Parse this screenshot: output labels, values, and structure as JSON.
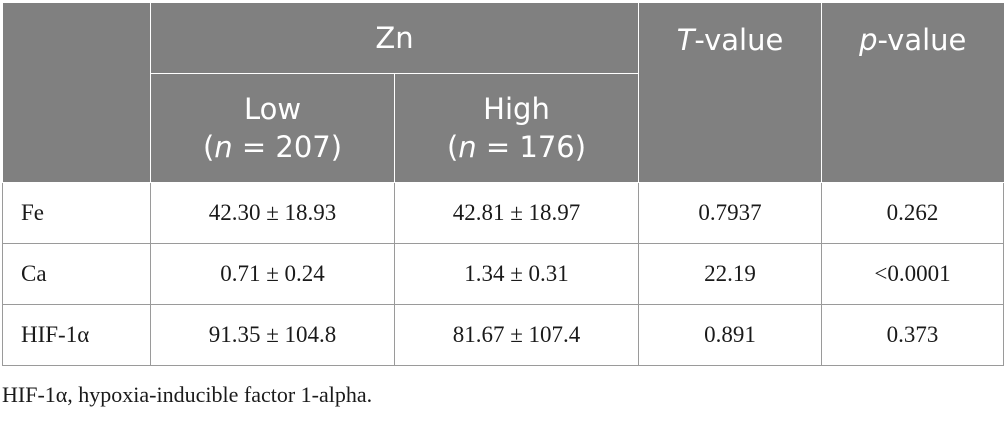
{
  "header": {
    "group": "Zn",
    "tvalue_italic": "T",
    "tvalue_rest": "-value",
    "pvalue_italic": "p",
    "pvalue_rest": "-value",
    "low": {
      "label": "Low",
      "n_open": "(",
      "n_var": "n",
      "n_rest": " = 207)"
    },
    "high": {
      "label": "High",
      "n_open": "(",
      "n_var": "n",
      "n_rest": " = 176)"
    }
  },
  "rows": [
    {
      "label": "Fe",
      "low": "42.30 ± 18.93",
      "high": "42.81 ± 18.97",
      "t": "0.7937",
      "p": "0.262"
    },
    {
      "label": "Ca",
      "low": "0.71 ± 0.24",
      "high": "1.34 ± 0.31",
      "t": "22.19",
      "p": "<0.0001"
    },
    {
      "label": "HIF-1α",
      "low": "91.35 ± 104.8",
      "high": "81.67 ± 107.4",
      "t": "0.891",
      "p": "0.373"
    }
  ],
  "footnote": "HIF-1α, hypoxia-inducible factor 1-alpha."
}
